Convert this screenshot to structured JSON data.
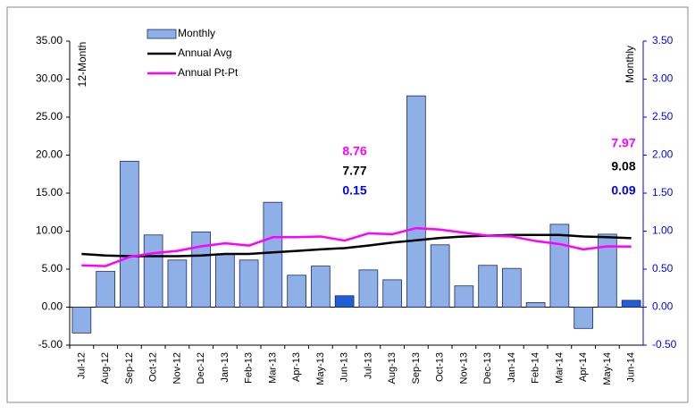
{
  "chart_data": {
    "type": "bar-line",
    "y_label": "12-Month",
    "y2_label": "Monthly",
    "categories": [
      "Jul-12",
      "Aug-12",
      "Sep-12",
      "Oct-12",
      "Nov-12",
      "Dec-12",
      "Jan-13",
      "Feb-13",
      "Mar-13",
      "Apr-13",
      "May-13",
      "Jun-13",
      "Jul-13",
      "Aug-13",
      "Sep-13",
      "Oct-13",
      "Nov-13",
      "Dec-13",
      "Jan-14",
      "Feb-14",
      "Mar-14",
      "Apr-14",
      "May-14",
      "Jun-14"
    ],
    "series": [
      {
        "name": "Monthly",
        "type": "bar",
        "axis": "y2",
        "color": "#8eb0e6",
        "colors": [
          "#8eb0e6",
          "#8eb0e6",
          "#8eb0e6",
          "#8eb0e6",
          "#8eb0e6",
          "#8eb0e6",
          "#8eb0e6",
          "#8eb0e6",
          "#8eb0e6",
          "#8eb0e6",
          "#8eb0e6",
          "#1f5fd6",
          "#8eb0e6",
          "#8eb0e6",
          "#8eb0e6",
          "#8eb0e6",
          "#8eb0e6",
          "#8eb0e6",
          "#8eb0e6",
          "#8eb0e6",
          "#8eb0e6",
          "#8eb0e6",
          "#8eb0e6",
          "#1f5fd6"
        ],
        "values": [
          -0.34,
          0.47,
          1.92,
          0.95,
          0.62,
          0.99,
          0.7,
          0.62,
          1.38,
          0.42,
          0.54,
          0.15,
          0.49,
          0.36,
          2.78,
          0.82,
          0.28,
          0.55,
          0.51,
          0.06,
          1.09,
          -0.28,
          0.96,
          0.09
        ]
      },
      {
        "name": "Annual Avg",
        "type": "line",
        "color": "#000000",
        "values": [
          7.0,
          6.8,
          6.7,
          6.7,
          6.7,
          6.8,
          7.0,
          7.0,
          7.2,
          7.4,
          7.6,
          7.77,
          8.1,
          8.5,
          8.8,
          9.1,
          9.3,
          9.4,
          9.5,
          9.5,
          9.5,
          9.3,
          9.2,
          9.08
        ]
      },
      {
        "name": "Annual Pt-Pt",
        "type": "line",
        "color": "#ff00ff",
        "values": [
          5.5,
          5.4,
          6.6,
          7.1,
          7.4,
          8.0,
          8.4,
          8.1,
          9.2,
          9.2,
          9.3,
          8.76,
          9.7,
          9.6,
          10.4,
          10.2,
          9.8,
          9.4,
          9.3,
          8.7,
          8.3,
          7.6,
          8.0,
          7.97
        ]
      }
    ],
    "ylim": [
      -5,
      35
    ],
    "yticks": [
      {
        "value": -5,
        "label": "-5.00"
      },
      {
        "value": 0,
        "label": "0.00"
      },
      {
        "value": 5,
        "label": "5.00"
      },
      {
        "value": 10,
        "label": "10.00"
      },
      {
        "value": 15,
        "label": "15.00"
      },
      {
        "value": 20,
        "label": "20.00"
      },
      {
        "value": 25,
        "label": "25.00"
      },
      {
        "value": 30,
        "label": "30.00"
      },
      {
        "value": 35,
        "label": "35.00"
      }
    ],
    "y2lim": [
      -0.5,
      3.5
    ],
    "y2ticks": [
      {
        "value": -0.5,
        "label": "-0.50"
      },
      {
        "value": 0,
        "label": "0.00"
      },
      {
        "value": 0.5,
        "label": "0.50"
      },
      {
        "value": 1,
        "label": "1.00"
      },
      {
        "value": 1.5,
        "label": "1.50"
      },
      {
        "value": 2,
        "label": "2.00"
      },
      {
        "value": 2.5,
        "label": "2.50"
      },
      {
        "value": 3,
        "label": "3.00"
      },
      {
        "value": 3.5,
        "label": "3.50"
      }
    ],
    "y2_color": "#0000ff",
    "annotations": [
      {
        "text": "8.76",
        "color": "#ff00ff"
      },
      {
        "text": "7.77",
        "color": "#000000"
      },
      {
        "text": "0.15",
        "color": "#0000ff"
      },
      {
        "text": "7.97",
        "color": "#ff00ff"
      },
      {
        "text": "9.08",
        "color": "#000000"
      },
      {
        "text": "0.09",
        "color": "#0000ff"
      }
    ]
  }
}
